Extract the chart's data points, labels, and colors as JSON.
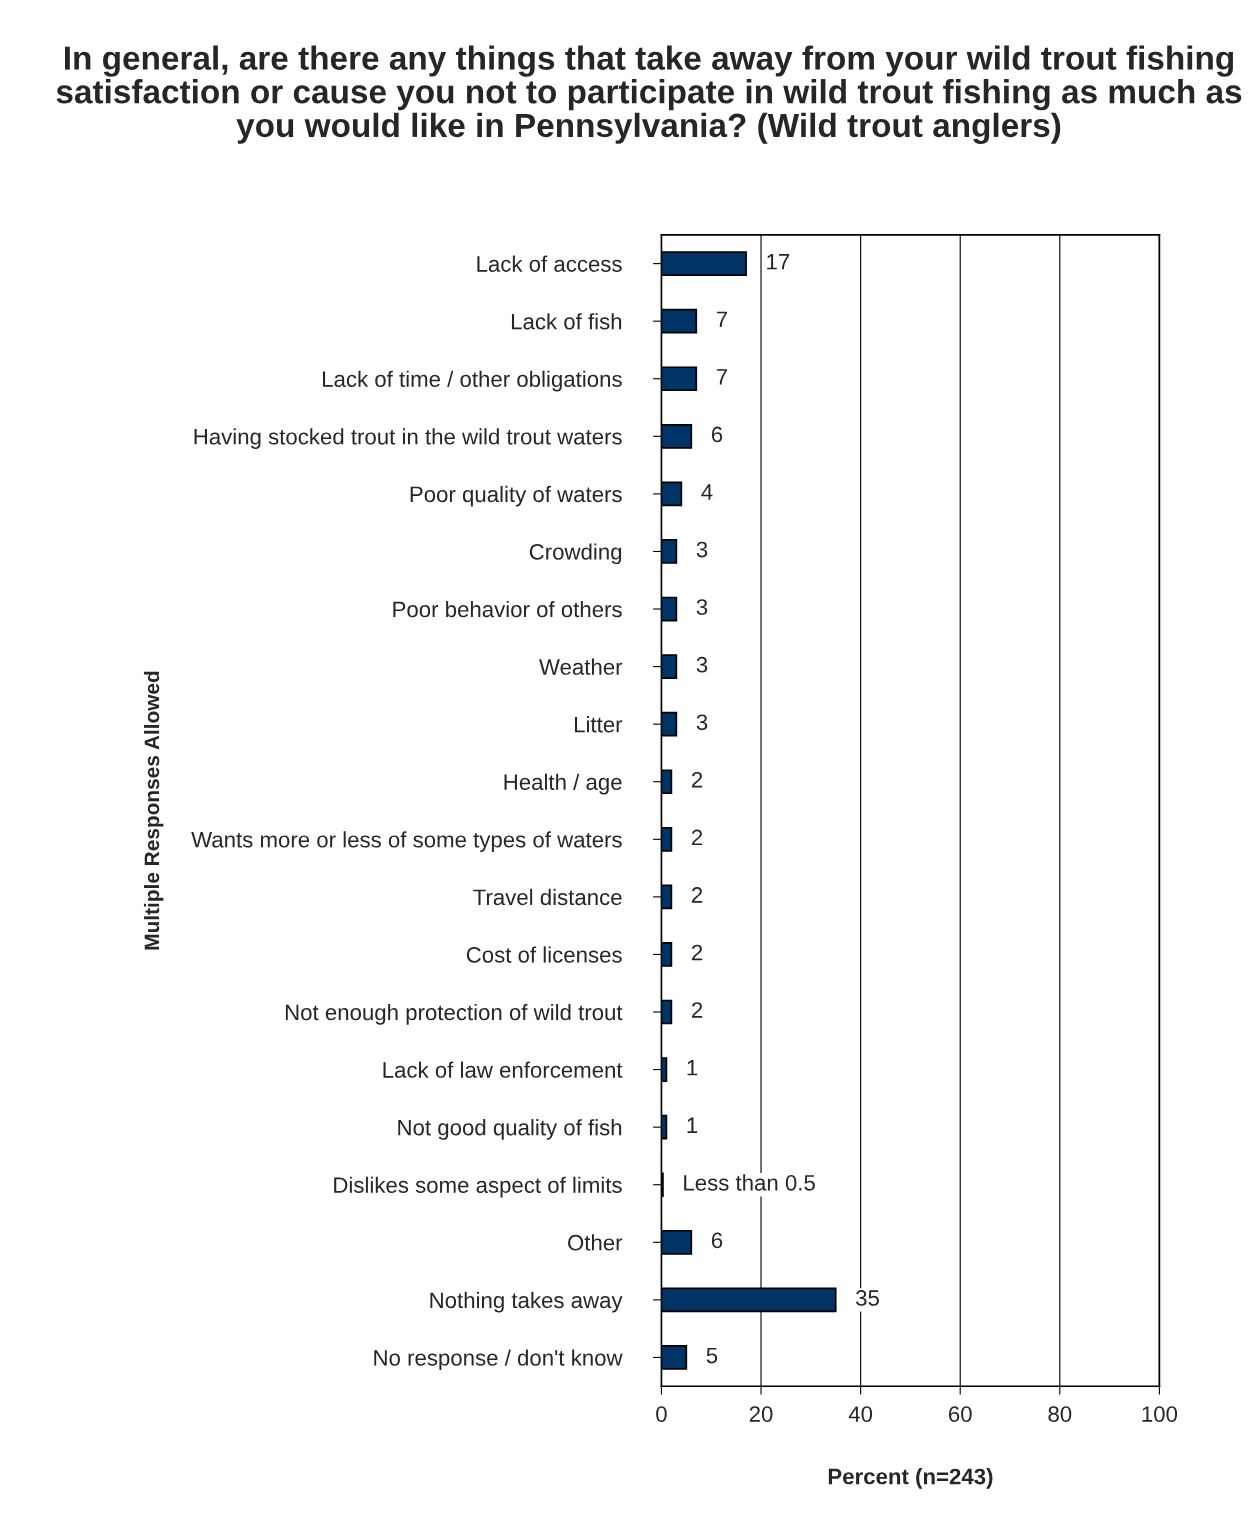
{
  "chart_data": {
    "type": "bar",
    "orientation": "horizontal",
    "title": "In general, are there any things that take away from your wild trout fishing satisfaction or cause you not to participate in wild trout fishing as much as you would like in Pennsylvania? (Wild trout anglers)",
    "xlabel": "Percent (n=243)",
    "ylabel": "Multiple Responses Allowed",
    "categories": [
      "Lack of access",
      "Lack of fish",
      "Lack of time / other obligations",
      "Having stocked trout in the wild trout waters",
      "Poor quality of waters",
      "Crowding",
      "Poor behavior of others",
      "Weather",
      "Litter",
      "Health / age",
      "Wants more or less of some types of waters",
      "Travel distance",
      "Cost of licenses",
      "Not enough protection of wild trout",
      "Lack of law enforcement",
      "Not good quality of fish",
      "Dislikes some aspect of limits",
      "Other",
      "Nothing takes away",
      "No response / don't know"
    ],
    "values": [
      17,
      7,
      7,
      6,
      4,
      3,
      3,
      3,
      3,
      2,
      2,
      2,
      2,
      2,
      1,
      1,
      0.3,
      6,
      35,
      5
    ],
    "value_labels": [
      "17",
      "7",
      "7",
      "6",
      "4",
      "3",
      "3",
      "3",
      "3",
      "2",
      "2",
      "2",
      "2",
      "2",
      "1",
      "1",
      "Less than 0.5",
      "6",
      "35",
      "5"
    ],
    "color": "#003366",
    "xlim": [
      0,
      100
    ],
    "xticks": [
      0,
      20,
      40,
      60,
      80,
      100
    ],
    "grid": "x",
    "legend": false
  }
}
